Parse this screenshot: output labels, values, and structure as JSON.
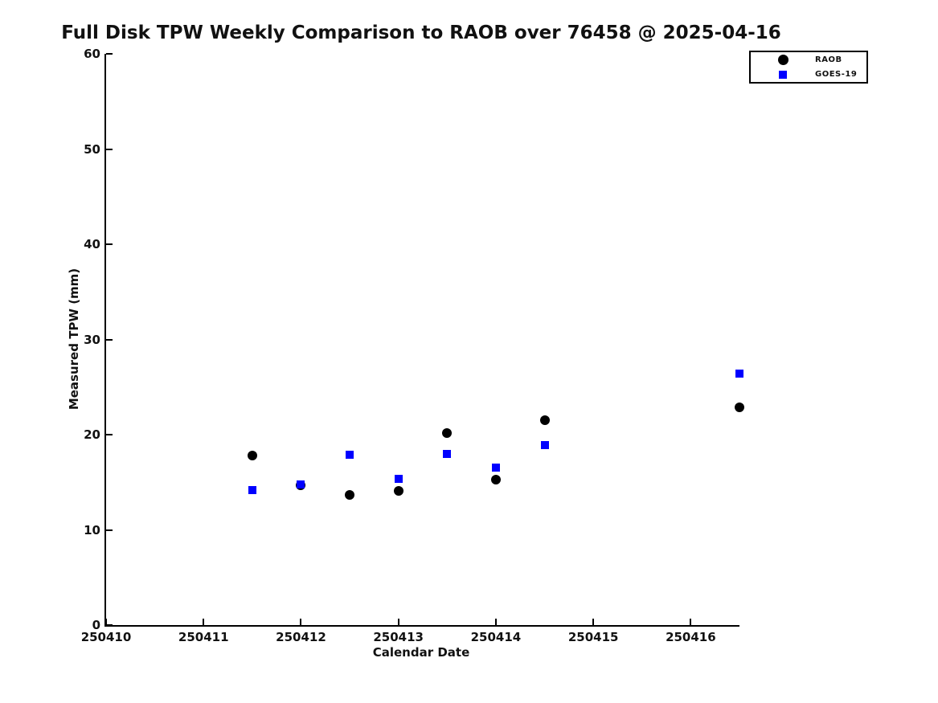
{
  "chart_data": {
    "type": "scatter",
    "title": "Full Disk TPW Weekly Comparison to RAOB over 76458 @ 2025-04-16",
    "xlabel": "Calendar Date",
    "ylabel": "Measured TPW (mm)",
    "xlim": [
      250410,
      250416.5
    ],
    "ylim": [
      0,
      60
    ],
    "x_ticks": [
      250410,
      250411,
      250412,
      250413,
      250414,
      250415,
      250416
    ],
    "y_ticks": [
      0,
      10,
      20,
      30,
      40,
      50,
      60
    ],
    "grid": false,
    "legend_position": "top-right-outside",
    "background_color": "#ffffff",
    "text_color": "#111111",
    "series": [
      {
        "name": "RAOB",
        "marker": "circle",
        "color": "#000000",
        "points": [
          [
            250411.5,
            17.8
          ],
          [
            250412.0,
            14.7
          ],
          [
            250412.5,
            13.7
          ],
          [
            250413.0,
            14.1
          ],
          [
            250413.5,
            20.2
          ],
          [
            250414.0,
            15.3
          ],
          [
            250414.5,
            21.5
          ],
          [
            250416.5,
            22.9
          ]
        ]
      },
      {
        "name": "GOES-19",
        "marker": "square",
        "color": "#0000ff",
        "points": [
          [
            250411.5,
            14.2
          ],
          [
            250412.0,
            14.8
          ],
          [
            250412.5,
            17.9
          ],
          [
            250413.0,
            15.4
          ],
          [
            250413.5,
            18.0
          ],
          [
            250414.0,
            16.5
          ],
          [
            250414.5,
            18.9
          ],
          [
            250416.5,
            26.4
          ]
        ]
      }
    ]
  }
}
